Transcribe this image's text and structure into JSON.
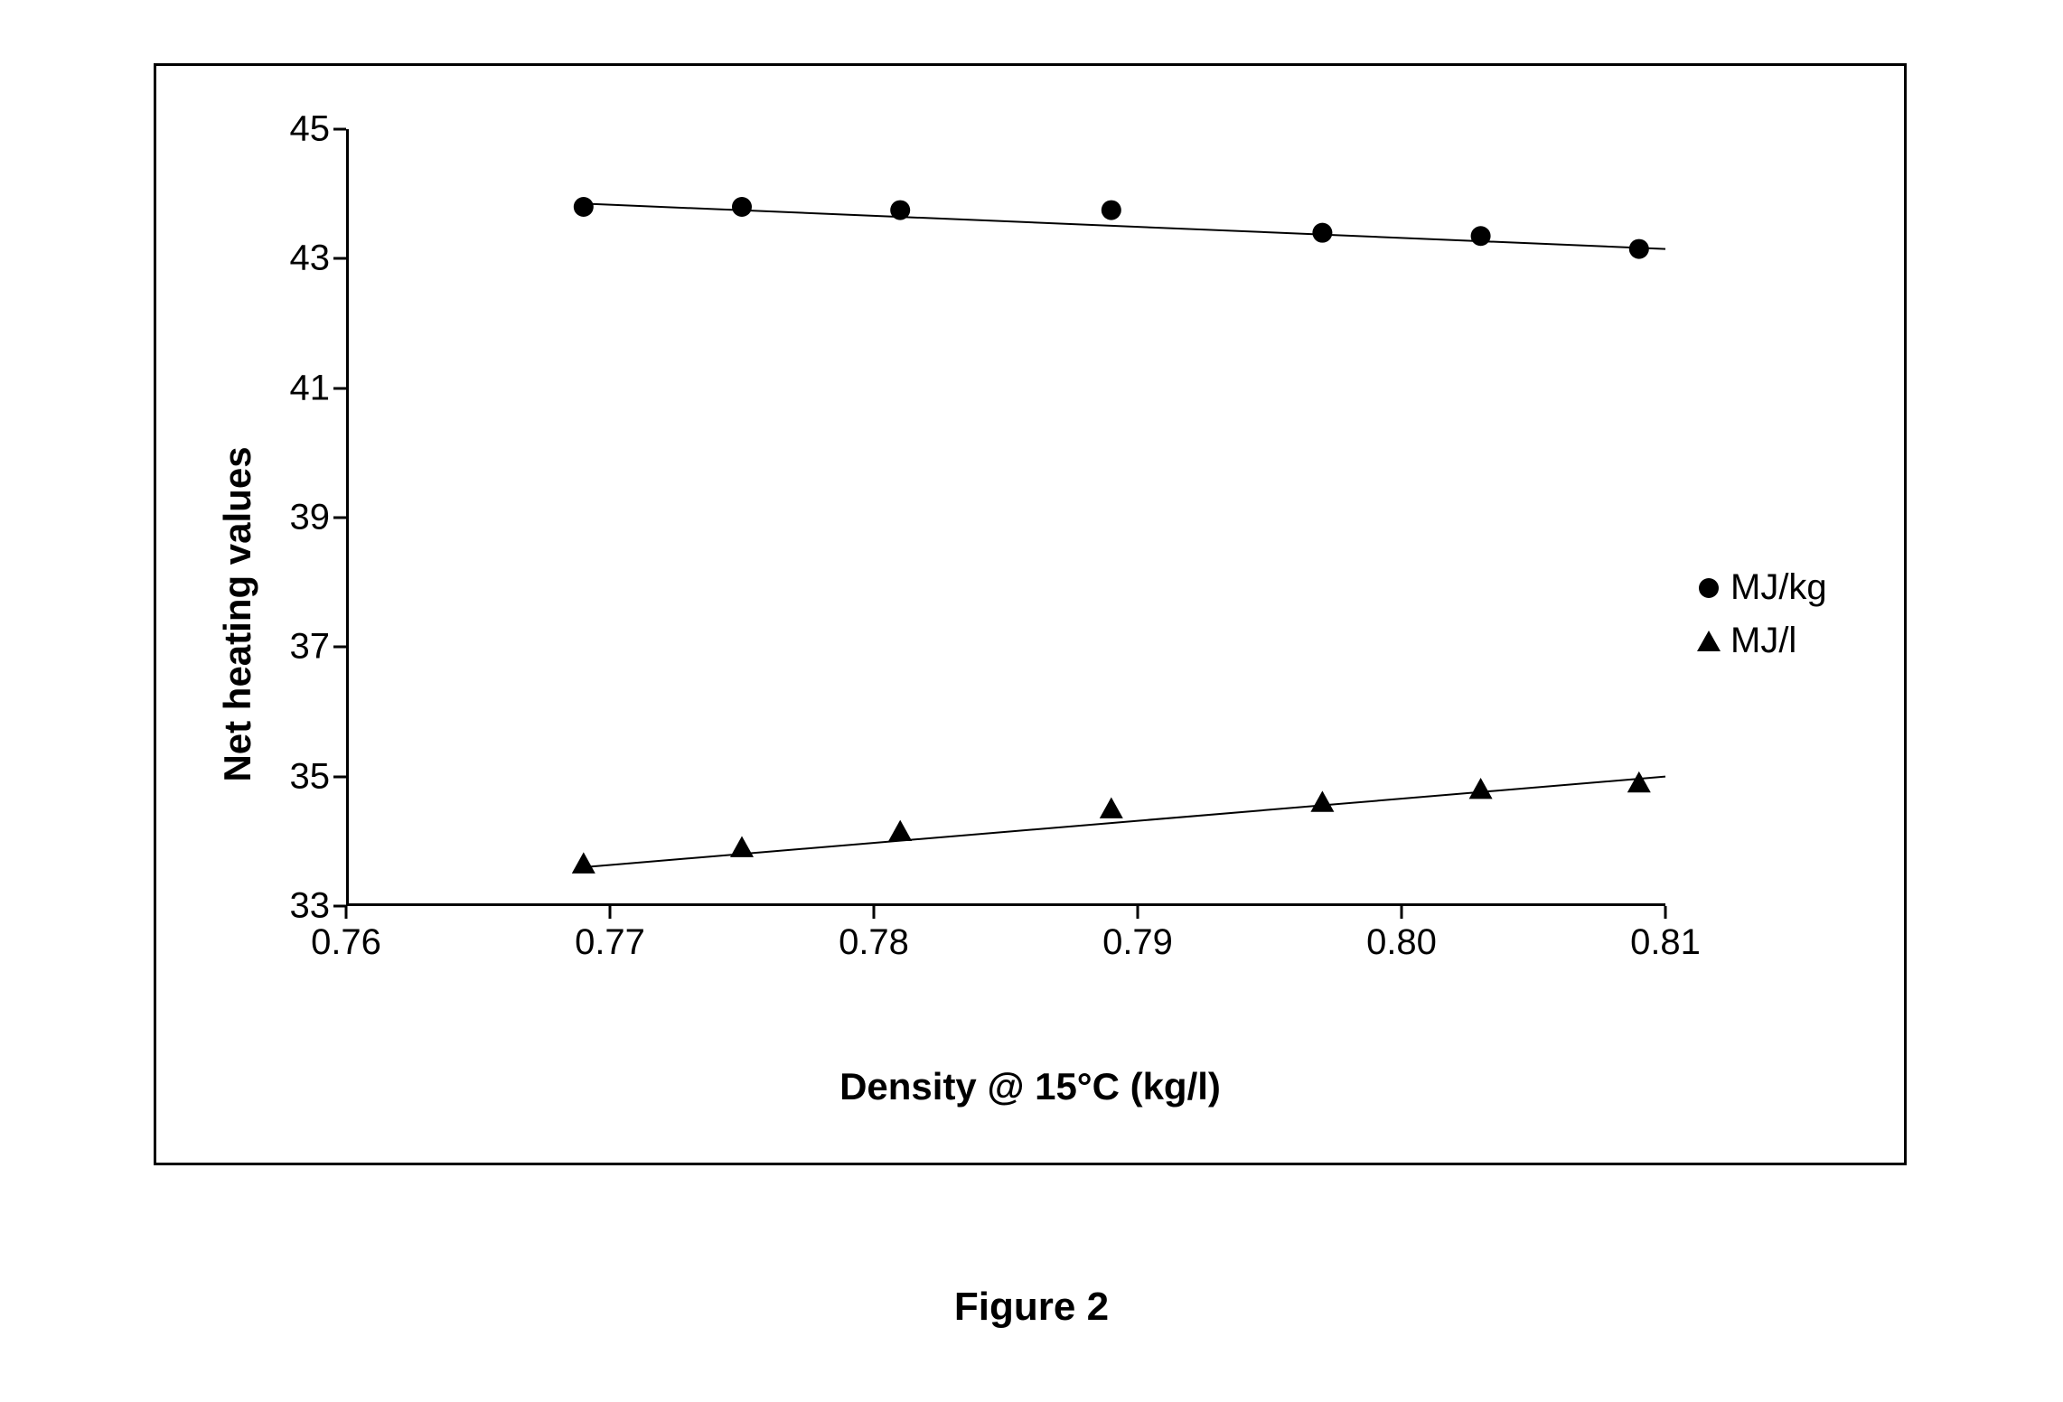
{
  "caption": "Figure 2",
  "chart": {
    "type": "scatter-with-trendlines",
    "background_color": "#ffffff",
    "border_color": "#000000",
    "xlabel": "Density  @ 15°C (kg/l)",
    "ylabel": "Net heating values",
    "label_fontsize": 42,
    "label_fontweight": "bold",
    "tick_fontsize": 40,
    "xlim": [
      0.76,
      0.81
    ],
    "ylim": [
      33,
      45
    ],
    "xtick_step": 0.01,
    "ytick_step": 2,
    "xticks": [
      {
        "value": 0.76,
        "label": "0.76"
      },
      {
        "value": 0.77,
        "label": "0.77"
      },
      {
        "value": 0.78,
        "label": "0.78"
      },
      {
        "value": 0.79,
        "label": "0.79"
      },
      {
        "value": 0.8,
        "label": "0.80"
      },
      {
        "value": 0.81,
        "label": "0.81"
      }
    ],
    "yticks": [
      {
        "value": 33,
        "label": "33"
      },
      {
        "value": 35,
        "label": "35"
      },
      {
        "value": 37,
        "label": "37"
      },
      {
        "value": 39,
        "label": "39"
      },
      {
        "value": 41,
        "label": "41"
      },
      {
        "value": 43,
        "label": "43"
      },
      {
        "value": 45,
        "label": "45"
      }
    ],
    "series": [
      {
        "name": "MJ/kg",
        "marker": "circle",
        "marker_size": 22,
        "color": "#000000",
        "line_width": 2,
        "points": [
          {
            "x": 0.769,
            "y": 43.8
          },
          {
            "x": 0.775,
            "y": 43.8
          },
          {
            "x": 0.781,
            "y": 43.75
          },
          {
            "x": 0.789,
            "y": 43.75
          },
          {
            "x": 0.797,
            "y": 43.4
          },
          {
            "x": 0.803,
            "y": 43.35
          },
          {
            "x": 0.809,
            "y": 43.15
          }
        ],
        "trendline": {
          "x1": 0.769,
          "y1": 43.85,
          "x2": 0.81,
          "y2": 43.15
        }
      },
      {
        "name": "MJ/l",
        "marker": "triangle",
        "marker_size": 26,
        "color": "#000000",
        "line_width": 2,
        "points": [
          {
            "x": 0.769,
            "y": 33.65
          },
          {
            "x": 0.775,
            "y": 33.9
          },
          {
            "x": 0.781,
            "y": 34.15
          },
          {
            "x": 0.789,
            "y": 34.5
          },
          {
            "x": 0.797,
            "y": 34.6
          },
          {
            "x": 0.803,
            "y": 34.8
          },
          {
            "x": 0.809,
            "y": 34.9
          }
        ],
        "trendline": {
          "x1": 0.769,
          "y1": 33.6,
          "x2": 0.81,
          "y2": 35.0
        }
      }
    ],
    "legend": {
      "position": "right-middle",
      "items": [
        {
          "marker": "circle",
          "label": "MJ/kg"
        },
        {
          "marker": "triangle",
          "label": "MJ/l"
        }
      ]
    }
  }
}
